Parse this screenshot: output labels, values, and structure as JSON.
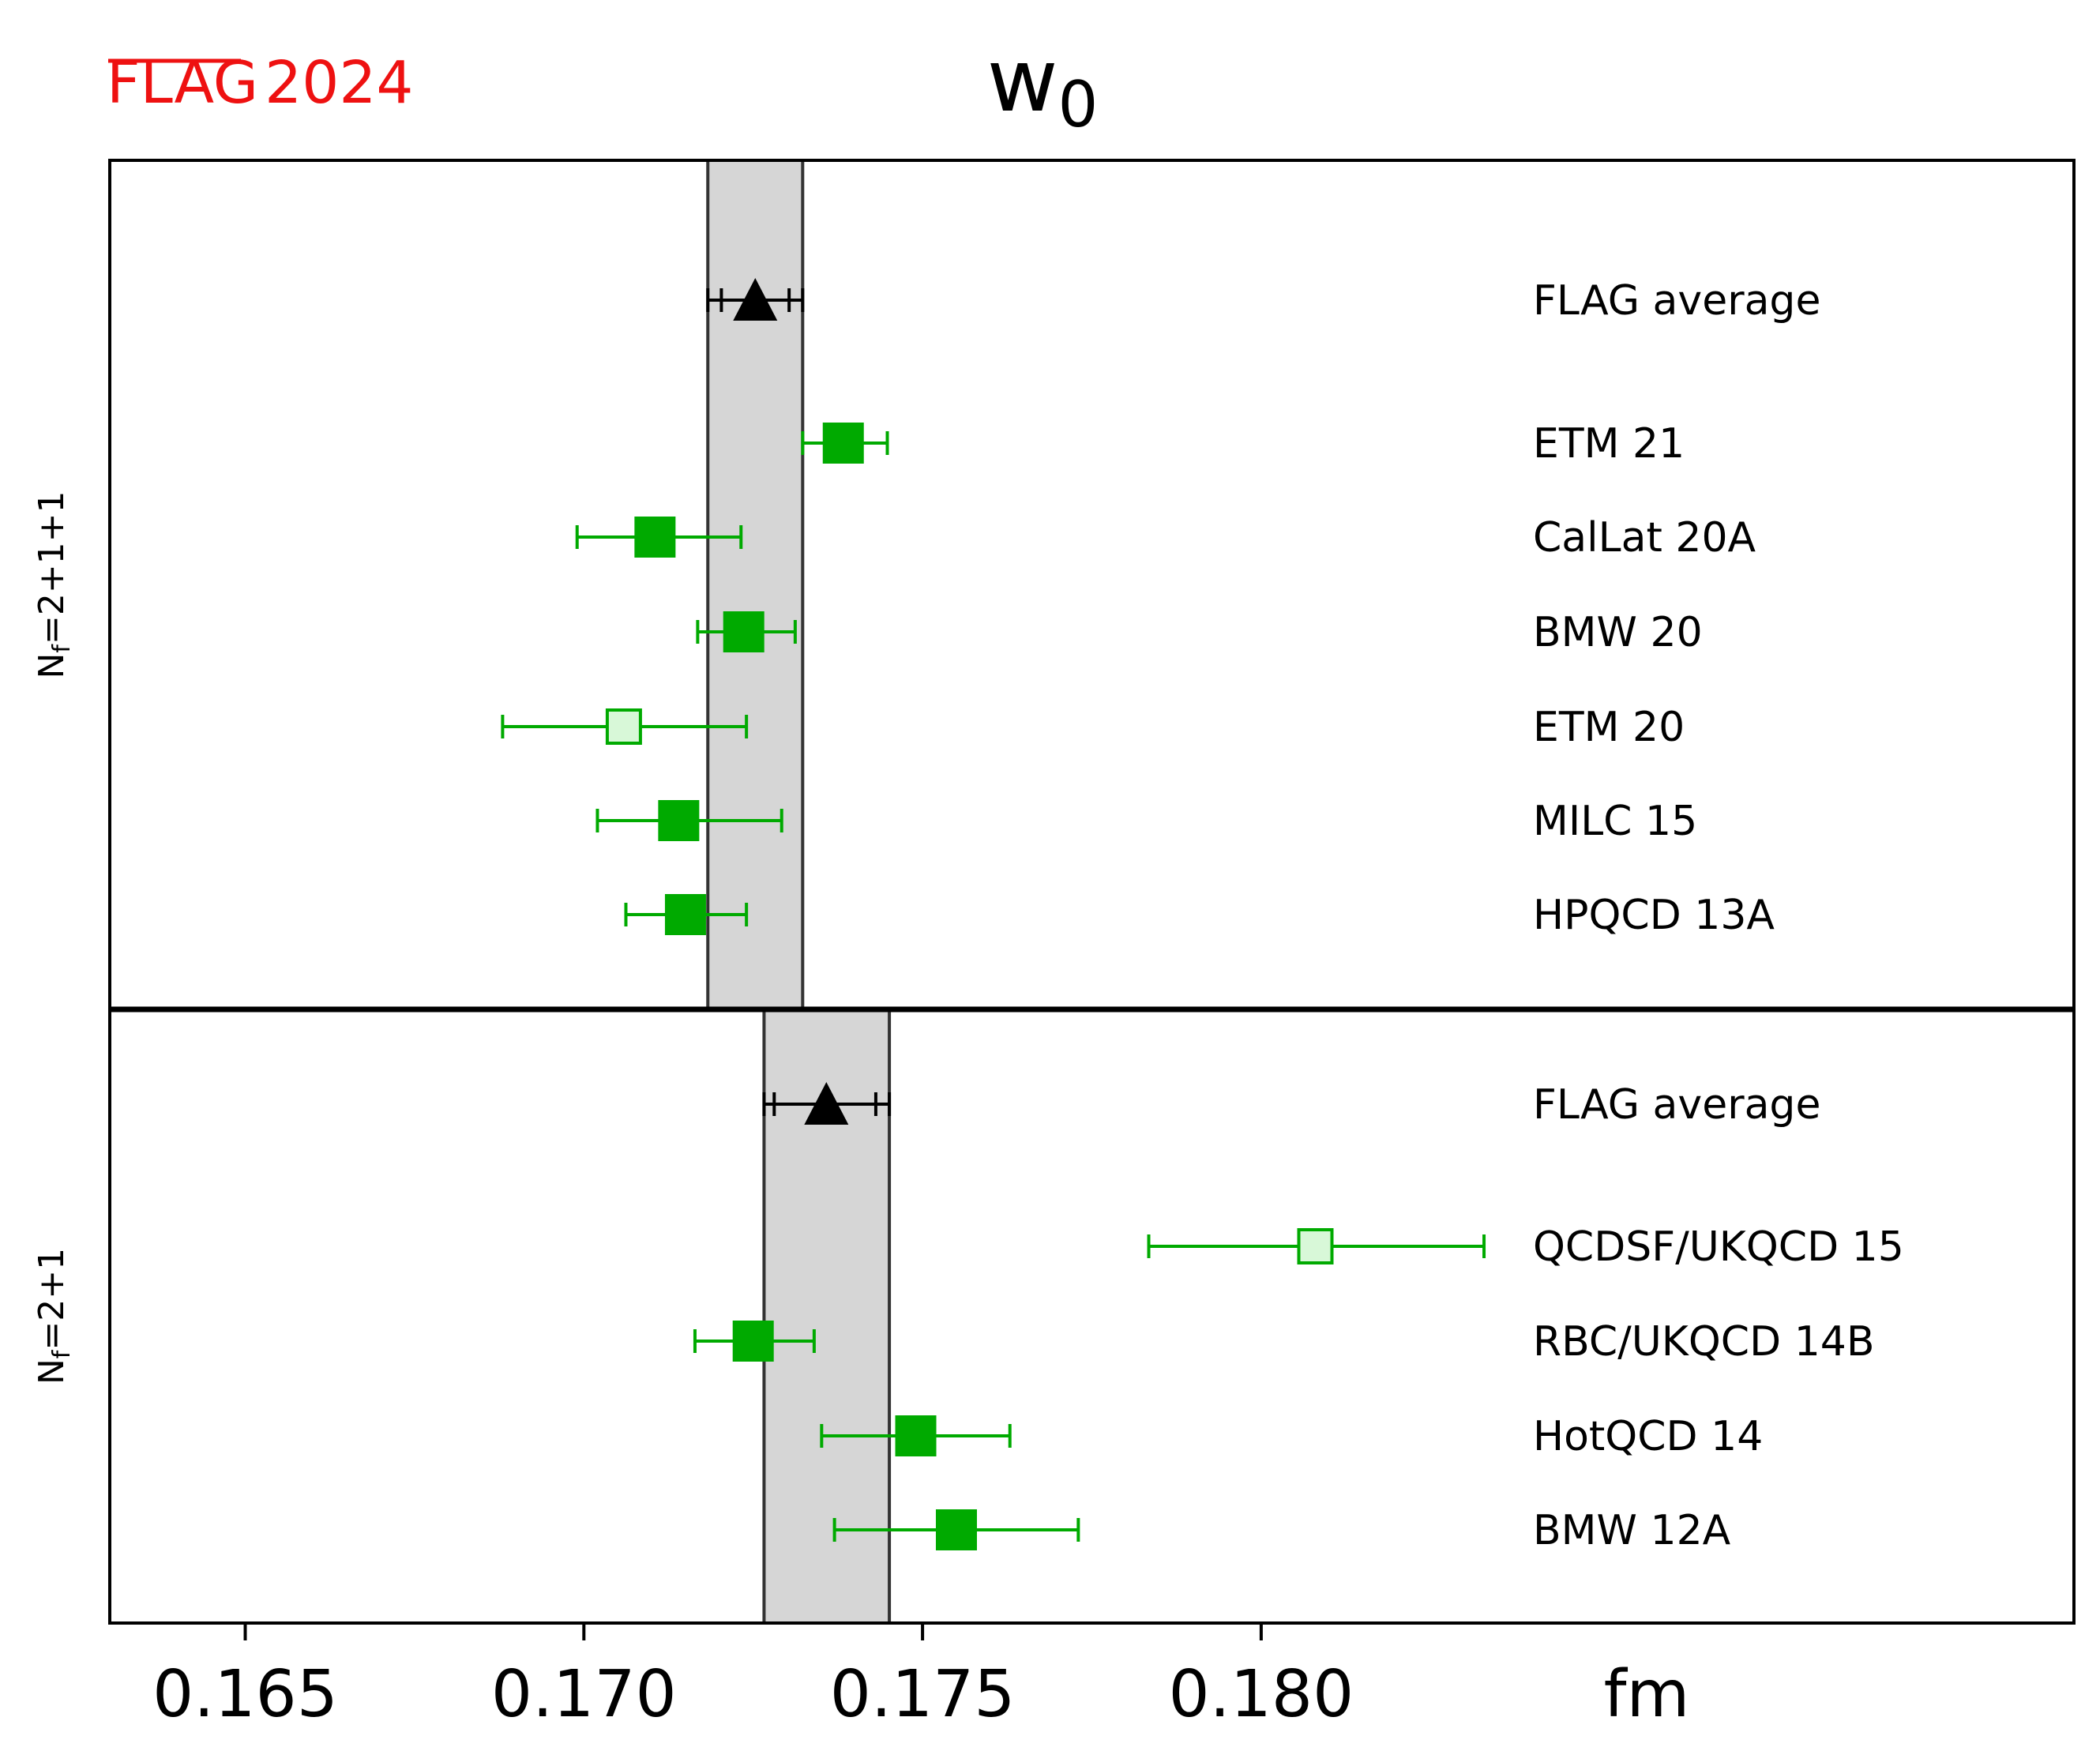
{
  "logo": {
    "text_a": "FLAG",
    "text_b": "2024",
    "color": "#ee1111"
  },
  "chart_data": {
    "type": "scatter",
    "subtype": "forest-plot-with-error-bars",
    "title": "w",
    "title_subscript": "0",
    "xunit": "fm",
    "xlim": [
      0.163,
      0.192
    ],
    "xticks": [
      0.165,
      0.17,
      0.175,
      0.18
    ],
    "xtick_labels": [
      "0.165",
      "0.170",
      "0.175",
      "0.180"
    ],
    "grid": false,
    "colors": {
      "average": "#000000",
      "result": "#00aa00",
      "band": "#d6d6d6"
    },
    "panels": [
      {
        "label_main": "N",
        "label_sub": "f",
        "label_rest": "=2+1+1",
        "band": [
          0.17183,
          0.17323
        ],
        "rows": [
          {
            "name": "FLAG average",
            "value": 0.17253,
            "err": [
              0.17183,
              0.17323
            ],
            "stat": [
              0.17203,
              0.17303
            ],
            "marker": "triangle"
          },
          {
            "name": "ETM 21",
            "value": 0.17383,
            "err": [
              0.17323,
              0.17448
            ],
            "marker": "square"
          },
          {
            "name": "CalLat 20A",
            "value": 0.17105,
            "err": [
              0.1699,
              0.17232
            ],
            "marker": "square"
          },
          {
            "name": "BMW 20",
            "value": 0.17236,
            "err": [
              0.17168,
              0.17312
            ],
            "marker": "square"
          },
          {
            "name": "ETM 20",
            "value": 0.17059,
            "err": [
              0.1688,
              0.1724
            ],
            "marker": "open-square"
          },
          {
            "name": "MILC 15",
            "value": 0.1714,
            "err": [
              0.1702,
              0.17292
            ],
            "marker": "square"
          },
          {
            "name": "HPQCD 13A",
            "value": 0.1715,
            "err": [
              0.17062,
              0.1724
            ],
            "marker": "square"
          }
        ]
      },
      {
        "label_main": "N",
        "label_sub": "f",
        "label_rest": "=2+1",
        "band": [
          0.17266,
          0.17451
        ],
        "rows": [
          {
            "name": "FLAG average",
            "value": 0.17358,
            "err": [
              0.17266,
              0.17451
            ],
            "stat": [
              0.17281,
              0.17431
            ],
            "marker": "triangle"
          },
          {
            "name": "QCDSF/UKQCD 15",
            "value": 0.1808,
            "err": [
              0.17834,
              0.18329
            ],
            "marker": "open-square"
          },
          {
            "name": "RBC/UKQCD 14B",
            "value": 0.1725,
            "err": [
              0.17164,
              0.1734
            ],
            "marker": "square"
          },
          {
            "name": "HotQCD 14",
            "value": 0.1749,
            "err": [
              0.17351,
              0.17629
            ],
            "marker": "square"
          },
          {
            "name": "BMW 12A",
            "value": 0.1755,
            "err": [
              0.1737,
              0.1773
            ],
            "marker": "square"
          }
        ]
      }
    ]
  }
}
